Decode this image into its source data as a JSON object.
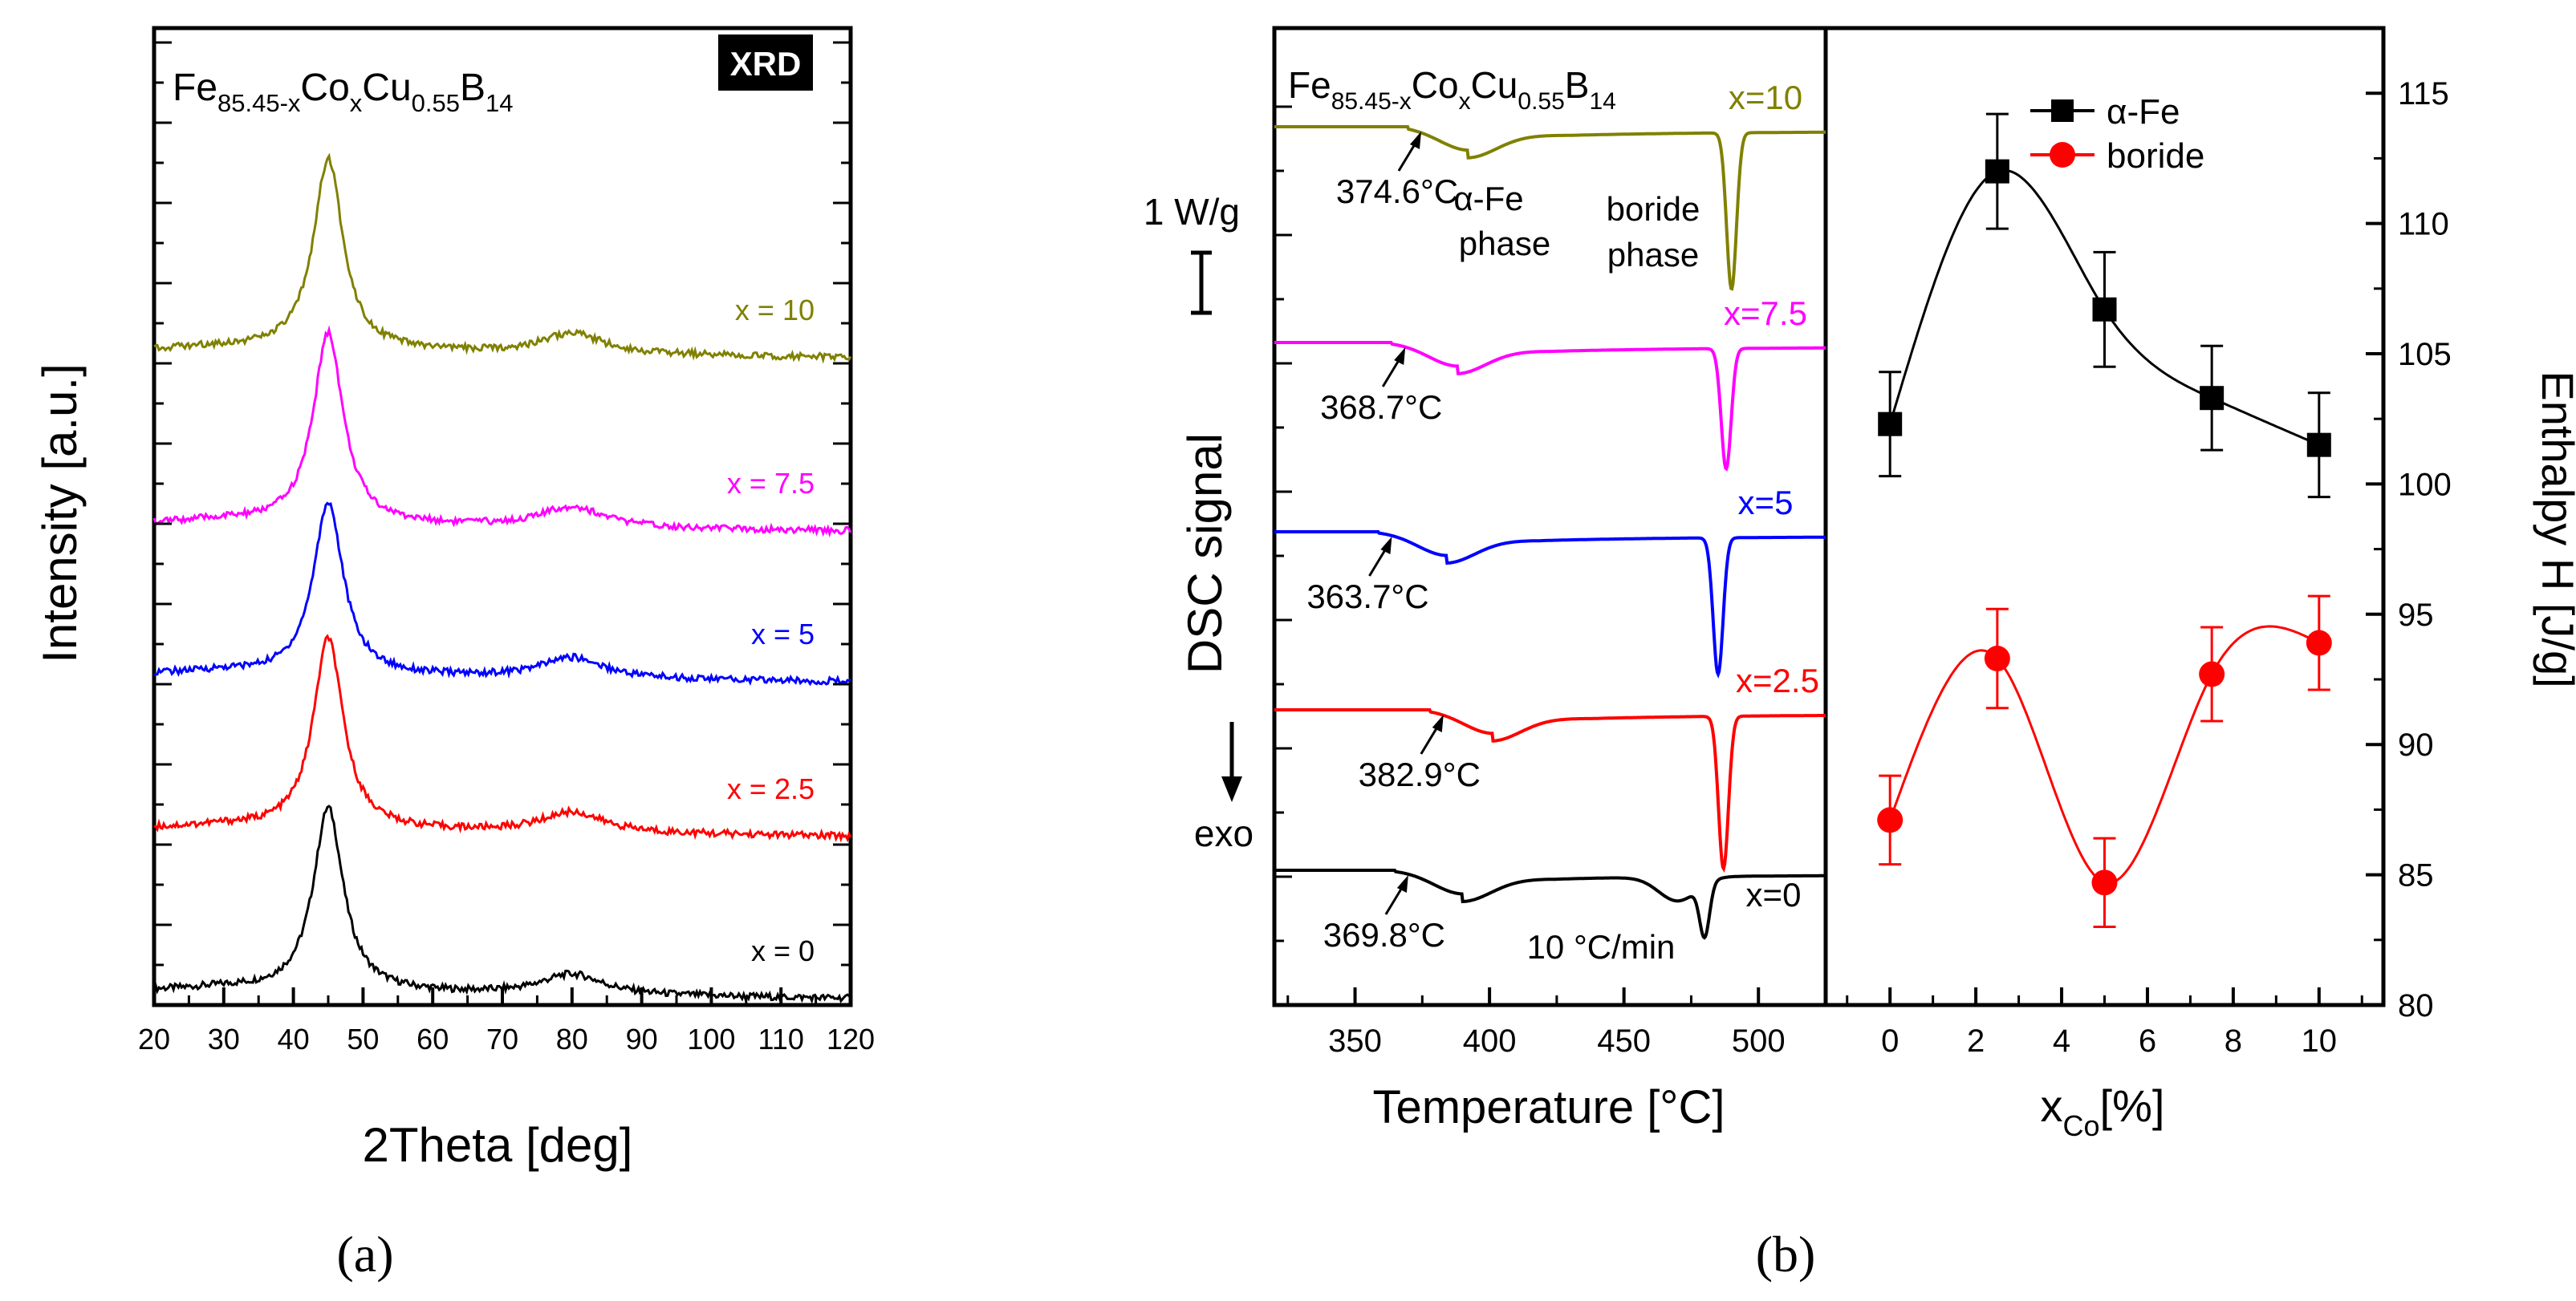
{
  "panel_labels": {
    "a": "(a)",
    "b": "(b)"
  },
  "chart_data": [
    {
      "id": "xrd",
      "type": "line",
      "title_badge": "XRD",
      "composition": {
        "base": "Fe",
        "s1": "85.45-x",
        "m1": "Co",
        "s2": "x",
        "m2": "Cu",
        "s3": "0.55",
        "m3": "B",
        "s4": "14"
      },
      "xlabel": "2Theta [deg]",
      "ylabel": "Intensity [a.u.]",
      "xlim": [
        20,
        120
      ],
      "xticks": [
        20,
        30,
        40,
        50,
        60,
        70,
        80,
        90,
        100,
        110,
        120
      ],
      "peaks": [
        45,
        80
      ],
      "series": [
        {
          "name": "x = 0",
          "color": "#000000",
          "offset": 0,
          "peak_height": 4.9
        },
        {
          "name": "x = 2.5",
          "color": "#ff0000",
          "offset": 4.3,
          "peak_height": 5.1
        },
        {
          "name": "x = 5",
          "color": "#0000ff",
          "offset": 8.4,
          "peak_height": 4.6
        },
        {
          "name": "x = 7.5",
          "color": "#ff00ff",
          "offset": 12.4,
          "peak_height": 5.1
        },
        {
          "name": "x = 10",
          "color": "#808000",
          "offset": 17.0,
          "peak_height": 5.1
        }
      ]
    },
    {
      "id": "dsc",
      "type": "line",
      "composition": {
        "base": "Fe",
        "s1": "85.45-x",
        "m1": "Co",
        "s2": "x",
        "m2": "Cu",
        "s3": "0.55",
        "m3": "B",
        "s4": "14"
      },
      "xlabel": "Temperature [°C]",
      "ylabel": "DSC signal",
      "xlim": [
        320,
        525
      ],
      "xticks": [
        350,
        400,
        450,
        500
      ],
      "scale_bar": "1 W/g",
      "exo_label": "exo",
      "rate_label": "10 °C/min",
      "phase_labels": {
        "alpha": "α-Fe phase",
        "boride": "boride phase"
      },
      "series": [
        {
          "name": "x=10",
          "color": "#808000",
          "onset": "374.6°C",
          "onset_temp": 374.6,
          "alpha_peak": 392,
          "boride_peak": 490
        },
        {
          "name": "x=7.5",
          "color": "#ff00ff",
          "onset": "368.7°C",
          "onset_temp": 368.7,
          "alpha_peak": 388,
          "boride_peak": 488
        },
        {
          "name": "x=5",
          "color": "#0000ff",
          "onset": "363.7°C",
          "onset_temp": 363.7,
          "alpha_peak": 384,
          "boride_peak": 485
        },
        {
          "name": "x=2.5",
          "color": "#ff0000",
          "onset": "382.9°C",
          "onset_temp": 382.9,
          "alpha_peak": 401,
          "boride_peak": 487
        },
        {
          "name": "x=0",
          "color": "#000000",
          "onset": "369.8°C",
          "onset_temp": 369.8,
          "alpha_peak": 390,
          "boride_peak": 480
        }
      ]
    },
    {
      "id": "enthalpy",
      "type": "scatter",
      "xlabel_main": "x",
      "xlabel_sub": "Co",
      "xlabel_tail": "[%]",
      "ylabel": "Enthalpy H [J/g]",
      "xlim": [
        -1.5,
        11.5
      ],
      "ylim": [
        80,
        117.5
      ],
      "xticks": [
        0,
        2,
        4,
        6,
        8,
        10
      ],
      "yticks": [
        80,
        85,
        90,
        95,
        100,
        105,
        110,
        115
      ],
      "series": [
        {
          "name": "α-Fe",
          "color": "#000000",
          "marker": "square",
          "x": [
            0,
            2.5,
            5,
            7.5,
            10
          ],
          "y": [
            102.3,
            112.0,
            106.7,
            103.3,
            101.5
          ],
          "err": [
            2.0,
            2.2,
            2.2,
            2.0,
            2.0
          ]
        },
        {
          "name": "boride",
          "color": "#ff0000",
          "marker": "circle",
          "x": [
            0,
            2.5,
            5,
            7.5,
            10
          ],
          "y": [
            87.1,
            93.3,
            84.7,
            92.7,
            93.9
          ],
          "err": [
            1.7,
            1.9,
            1.7,
            1.8,
            1.8
          ]
        }
      ]
    }
  ]
}
